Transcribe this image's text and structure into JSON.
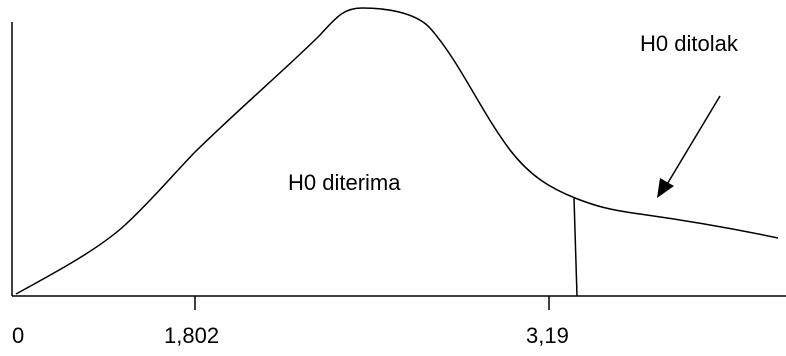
{
  "labels": {
    "accept_region": "H0 diterima",
    "reject_region": "H0 ditolak"
  },
  "ticks": {
    "origin": "0",
    "t_table": "1,802",
    "f_value": "3,19"
  },
  "colors": {
    "line": "#000000",
    "background": "#ffffff"
  }
}
